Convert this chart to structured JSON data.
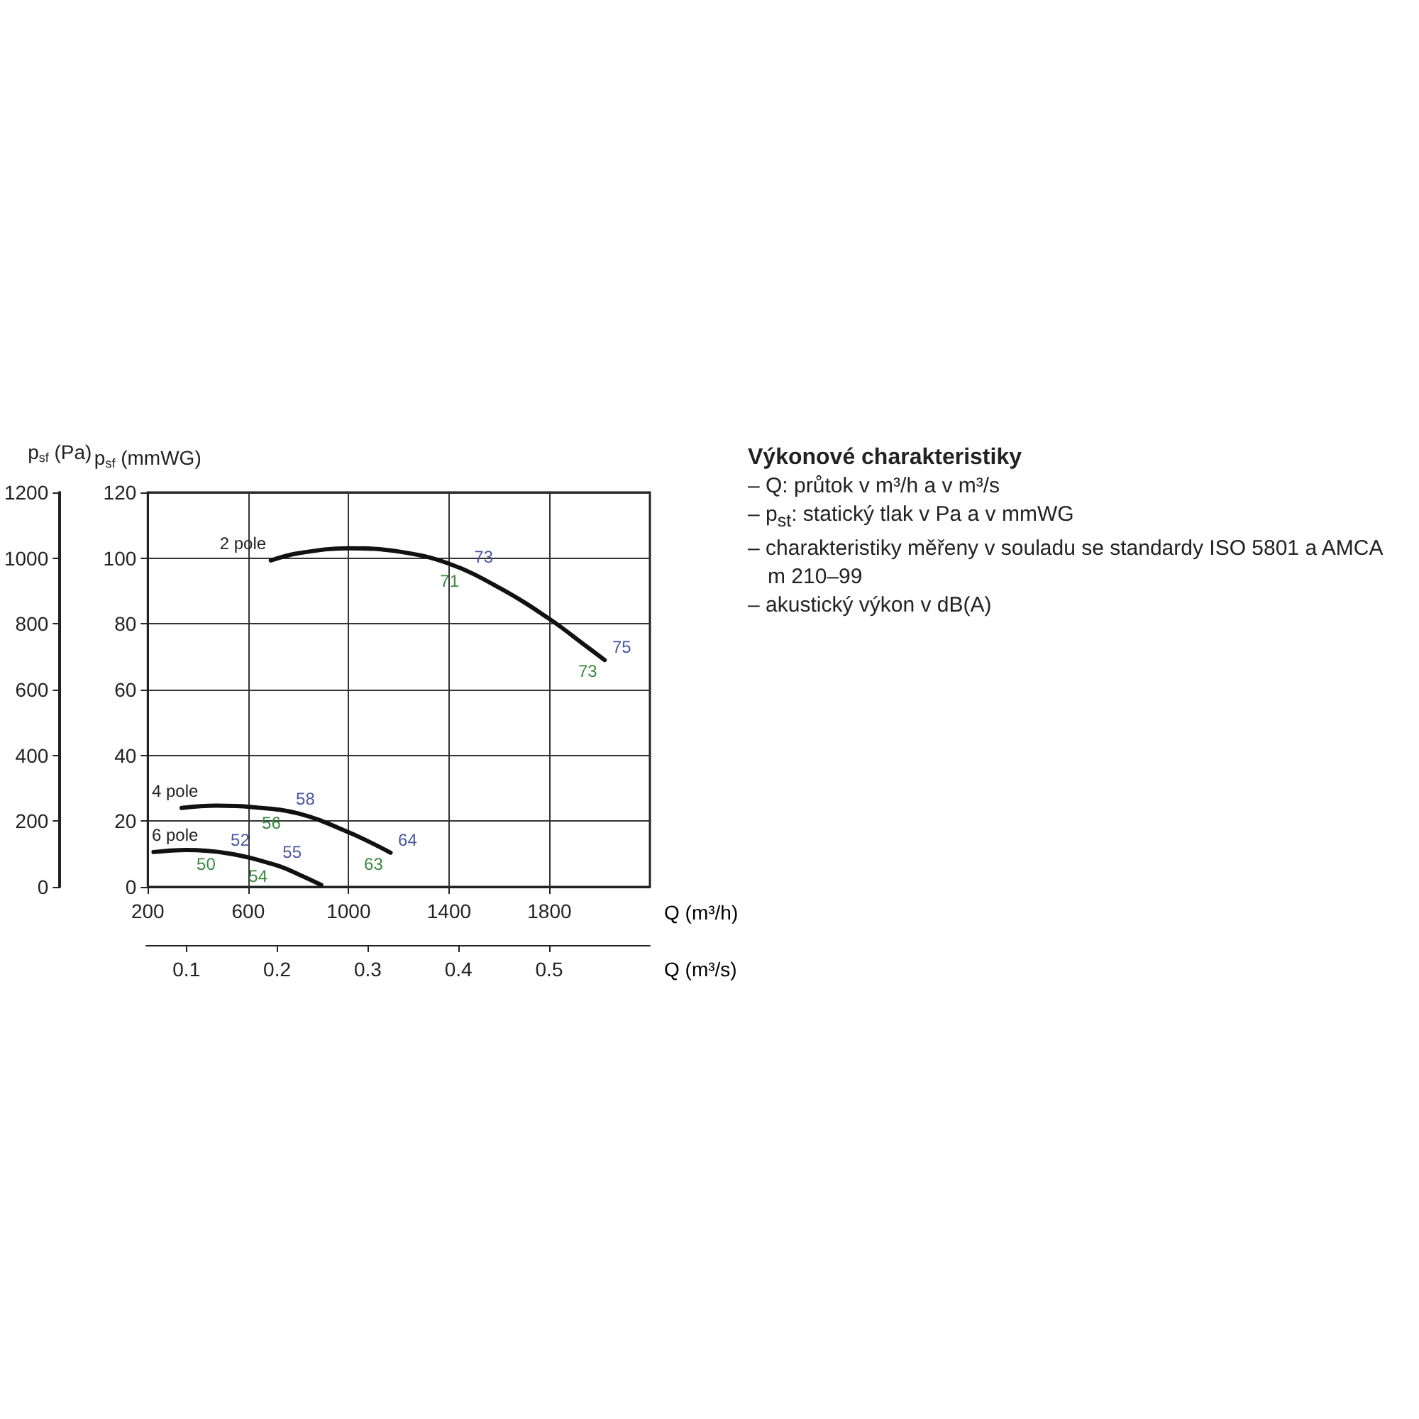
{
  "chart_data": {
    "type": "line",
    "xlabel": "Q (m³/h)",
    "ylabel": "p$_{sf}$ (mmWG)",
    "y2label": "p$_{sf}$ (Pa)",
    "x2label": "Q (m³/s)",
    "xlim": [
      200,
      2200
    ],
    "xticks": [
      200,
      600,
      1000,
      1400,
      1800
    ],
    "ylim": [
      0,
      120
    ],
    "yticks": [
      0,
      20,
      40,
      60,
      80,
      100,
      120
    ],
    "y2lim": [
      0,
      1200
    ],
    "y2ticks": [
      0,
      200,
      400,
      600,
      800,
      1000,
      1200
    ],
    "x2lim": [
      0.0556,
      0.6111
    ],
    "x2ticks": [
      0.1,
      0.2,
      0.3,
      0.4,
      0.5
    ],
    "grid": true,
    "legend": false,
    "marker": "none",
    "line_style": "solid",
    "series": [
      {
        "name": "2 pole",
        "color": "#111111",
        "x": [
          690,
          800,
          1000,
          1200,
          1400,
          1600,
          1800,
          1950,
          2020
        ],
        "values": [
          99.3,
          101.5,
          103,
          102,
          98.3,
          91,
          81.5,
          73,
          69
        ]
      },
      {
        "name": "4 pole",
        "color": "#111111",
        "x": [
          335,
          472,
          613,
          801,
          1000,
          1167
        ],
        "values": [
          24,
          24.7,
          24.3,
          22.3,
          16.6,
          10.4
        ]
      },
      {
        "name": "6 pole",
        "color": "#111111",
        "x": [
          223,
          350,
          519,
          707,
          801,
          891
        ],
        "values": [
          10.6,
          11.2,
          10.2,
          6.7,
          3.8,
          0.6
        ]
      }
    ],
    "annotations": [
      "Výkonové charakteristiky",
      "– Q: průtok v m³/h a v m³/s",
      "– p$_{st}$: statický tlak v Pa a v mmWG",
      "– charakteristiky měřeny v souladu se standardy ISO 5801 a AMCA m 210–99",
      "– akustický výkon v dB(A)",
      {
        "text": "73",
        "x": 1470,
        "y": 96.5
      },
      {
        "text": "71",
        "x": 1470,
        "y": 96.5
      },
      {
        "text": "75",
        "x": 2020,
        "y": 69
      },
      {
        "text": "73",
        "x": 2020,
        "y": 69
      },
      {
        "text": "58",
        "x": 760,
        "y": 22.9
      },
      {
        "text": "56",
        "x": 760,
        "y": 22.9
      },
      {
        "text": "64",
        "x": 1167,
        "y": 10.4
      },
      {
        "text": "63",
        "x": 1167,
        "y": 10.4
      },
      {
        "text": "52",
        "x": 500,
        "y": 10.4
      },
      {
        "text": "50",
        "x": 500,
        "y": 10.4
      },
      {
        "text": "55",
        "x": 707,
        "y": 6.7
      },
      {
        "text": "54",
        "x": 707,
        "y": 6.7
      }
    ]
  }
}
